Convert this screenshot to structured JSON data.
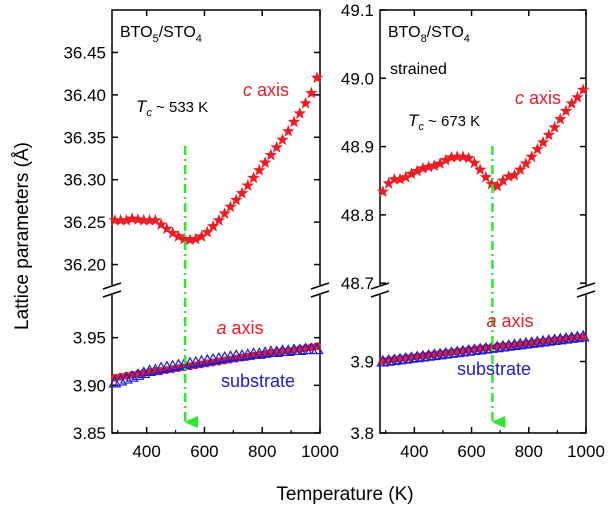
{
  "chart_data": [
    {
      "type": "scatter",
      "panel_label_main": "BTO",
      "panel_label_sub1": "5",
      "panel_label_mid": "/STO",
      "panel_label_sub2": "4",
      "note": "",
      "tc_T": "T",
      "tc_sub": "c",
      "tc_value_text": " ~ 533 K",
      "tc_value": 533,
      "xlim": [
        280,
        1000
      ],
      "x_ticks": [
        400,
        600,
        800,
        1000
      ],
      "x_tick_labels": [
        "400",
        "600",
        "800",
        "1000"
      ],
      "upper": {
        "ylim": [
          36.17,
          36.5
        ],
        "y_ticks": [
          36.2,
          36.25,
          36.3,
          36.35,
          36.4,
          36.45
        ],
        "y_tick_labels": [
          "36.20",
          "36.25",
          "36.30",
          "36.35",
          "36.40",
          "36.45"
        ]
      },
      "lower": {
        "ylim": [
          3.85,
          4.0
        ],
        "y_ticks": [
          3.85,
          3.9,
          3.95
        ],
        "y_tick_labels": [
          "3.85",
          "3.90",
          "3.95"
        ]
      },
      "series": [
        {
          "name": "c axis",
          "name_italic": "c",
          "name_rest": " axis",
          "axis": "upper",
          "color": "#ee1c24",
          "marker": "star",
          "x": [
            290,
            310,
            330,
            350,
            370,
            390,
            410,
            430,
            450,
            470,
            490,
            510,
            530,
            550,
            570,
            590,
            610,
            630,
            650,
            670,
            690,
            710,
            730,
            750,
            770,
            790,
            810,
            830,
            850,
            870,
            890,
            910,
            930,
            950,
            970,
            990
          ],
          "y": [
            36.252,
            36.252,
            36.252,
            36.254,
            36.253,
            36.252,
            36.252,
            36.252,
            36.247,
            36.242,
            36.237,
            36.233,
            36.23,
            36.229,
            36.23,
            36.233,
            36.238,
            36.245,
            36.252,
            36.26,
            36.268,
            36.276,
            36.284,
            36.293,
            36.302,
            36.311,
            36.32,
            36.329,
            36.338,
            36.347,
            36.357,
            36.368,
            36.378,
            36.39,
            36.402,
            36.42
          ]
        },
        {
          "name": "a axis",
          "name_italic": "a",
          "name_rest": " axis",
          "axis": "lower",
          "color": "#ee1c24",
          "marker": "circle",
          "x": [
            290,
            310,
            330,
            350,
            370,
            390,
            410,
            430,
            450,
            470,
            490,
            510,
            530,
            550,
            570,
            590,
            610,
            630,
            650,
            670,
            690,
            710,
            730,
            750,
            770,
            790,
            810,
            830,
            850,
            870,
            890,
            910,
            930,
            950,
            970,
            990
          ],
          "y": [
            3.908,
            3.909,
            3.91,
            3.911,
            3.912,
            3.913,
            3.914,
            3.915,
            3.915,
            3.916,
            3.917,
            3.918,
            3.919,
            3.92,
            3.921,
            3.922,
            3.923,
            3.924,
            3.925,
            3.926,
            3.927,
            3.928,
            3.929,
            3.93,
            3.931,
            3.932,
            3.933,
            3.934,
            3.935,
            3.936,
            3.936,
            3.937,
            3.938,
            3.939,
            3.94,
            3.941
          ]
        },
        {
          "name": "substrate",
          "axis": "lower",
          "color": "#1c1cd0",
          "marker": "triangle",
          "x": [
            290,
            310,
            330,
            350,
            370,
            390,
            410,
            430,
            450,
            470,
            490,
            510,
            530,
            550,
            570,
            590,
            610,
            630,
            650,
            670,
            690,
            710,
            730,
            750,
            770,
            790,
            810,
            830,
            850,
            870,
            890,
            910,
            930,
            950,
            970,
            990
          ],
          "y": [
            3.903,
            3.905,
            3.907,
            3.909,
            3.911,
            3.913,
            3.915,
            3.916,
            3.918,
            3.919,
            3.92,
            3.921,
            3.922,
            3.923,
            3.924,
            3.925,
            3.926,
            3.927,
            3.928,
            3.929,
            3.93,
            3.931,
            3.931,
            3.932,
            3.933,
            3.933,
            3.934,
            3.935,
            3.935,
            3.936,
            3.936,
            3.937,
            3.937,
            3.938,
            3.938,
            3.938
          ]
        }
      ]
    },
    {
      "type": "scatter",
      "panel_label_main": "BTO",
      "panel_label_sub1": "8",
      "panel_label_mid": "/STO",
      "panel_label_sub2": "4",
      "note": "strained",
      "tc_T": "T",
      "tc_sub": "c",
      "tc_value_text": " ~ 673 K",
      "tc_value": 673,
      "xlim": [
        280,
        1000
      ],
      "x_ticks": [
        400,
        600,
        800,
        1000
      ],
      "x_tick_labels": [
        "400",
        "600",
        "800",
        "1000"
      ],
      "upper": {
        "ylim": [
          48.69,
          49.1
        ],
        "y_ticks": [
          48.7,
          48.8,
          48.9,
          49.0,
          49.1
        ],
        "y_tick_labels": [
          "48.7",
          "48.8",
          "48.9",
          "49.0",
          "49.1"
        ]
      },
      "lower": {
        "ylim": [
          3.8,
          4.0
        ],
        "y_ticks": [
          3.8,
          3.9
        ],
        "y_tick_labels": [
          "3.8",
          "3.9"
        ]
      },
      "series": [
        {
          "name": "c axis",
          "name_italic": "c",
          "name_rest": " axis",
          "axis": "upper",
          "color": "#ee1c24",
          "marker": "star",
          "x": [
            290,
            310,
            330,
            350,
            370,
            390,
            410,
            430,
            450,
            470,
            490,
            510,
            530,
            550,
            570,
            590,
            610,
            630,
            650,
            670,
            690,
            710,
            730,
            750,
            770,
            790,
            810,
            830,
            850,
            870,
            890,
            910,
            930,
            950,
            970,
            990
          ],
          "y": [
            48.834,
            48.846,
            48.852,
            48.852,
            48.855,
            48.86,
            48.864,
            48.868,
            48.87,
            48.872,
            48.875,
            48.88,
            48.884,
            48.885,
            48.885,
            48.883,
            48.876,
            48.866,
            48.855,
            48.845,
            48.842,
            48.85,
            48.856,
            48.858,
            48.866,
            48.875,
            48.885,
            48.896,
            48.906,
            48.917,
            48.928,
            48.94,
            48.952,
            48.963,
            48.972,
            48.983
          ]
        },
        {
          "name": "a axis",
          "name_italic": "a",
          "name_rest": " axis",
          "axis": "lower",
          "color": "#ee1c24",
          "marker": "circle",
          "x": [
            290,
            310,
            330,
            350,
            370,
            390,
            410,
            430,
            450,
            470,
            490,
            510,
            530,
            550,
            570,
            590,
            610,
            630,
            650,
            670,
            690,
            710,
            730,
            750,
            770,
            790,
            810,
            830,
            850,
            870,
            890,
            910,
            930,
            950,
            970,
            990
          ],
          "y": [
            3.901,
            3.902,
            3.903,
            3.904,
            3.905,
            3.906,
            3.907,
            3.908,
            3.909,
            3.91,
            3.911,
            3.912,
            3.913,
            3.914,
            3.915,
            3.916,
            3.917,
            3.918,
            3.919,
            3.92,
            3.921,
            3.922,
            3.922,
            3.923,
            3.924,
            3.925,
            3.926,
            3.927,
            3.928,
            3.929,
            3.93,
            3.931,
            3.932,
            3.933,
            3.934,
            3.935
          ]
        },
        {
          "name": "substrate",
          "axis": "lower",
          "color": "#1c1cd0",
          "marker": "triangle",
          "x": [
            290,
            310,
            330,
            350,
            370,
            390,
            410,
            430,
            450,
            470,
            490,
            510,
            530,
            550,
            570,
            590,
            610,
            630,
            650,
            670,
            690,
            710,
            730,
            750,
            770,
            790,
            810,
            830,
            850,
            870,
            890,
            910,
            930,
            950,
            970,
            990
          ],
          "y": [
            3.9,
            3.901,
            3.902,
            3.903,
            3.904,
            3.905,
            3.906,
            3.907,
            3.908,
            3.909,
            3.91,
            3.911,
            3.912,
            3.913,
            3.914,
            3.915,
            3.916,
            3.917,
            3.918,
            3.919,
            3.92,
            3.921,
            3.922,
            3.923,
            3.924,
            3.925,
            3.926,
            3.927,
            3.928,
            3.929,
            3.93,
            3.931,
            3.932,
            3.933,
            3.934,
            3.935
          ]
        }
      ]
    }
  ],
  "y_axis_title": "Lattice parameters (Å)",
  "x_axis_title": "Temperature (K)",
  "colors": {
    "c_axis": "#ee1c24",
    "a_axis": "#ee1c24",
    "substrate": "#1c1cd0",
    "tc_line": "#2ee82e"
  }
}
